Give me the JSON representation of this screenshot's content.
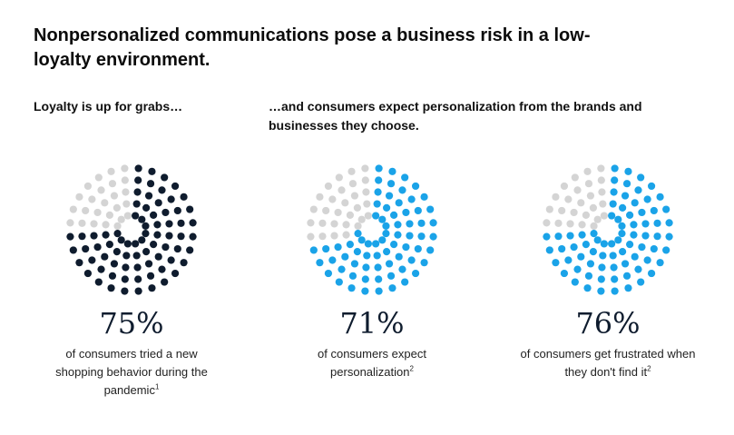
{
  "title": "Nonpersonalized communications pose a business risk in a low-loyalty environment.",
  "subheadings": {
    "left": "Loyalty is up for grabs…",
    "right": "…and consumers expect personalization from the brands and businesses they choose."
  },
  "colors": {
    "inactive": "#d4d4d4",
    "dark": "#0f1c2e",
    "blue": "#1aa3e8"
  },
  "chart_data": [
    {
      "type": "pie",
      "value": 75,
      "max": 100,
      "value_label": "75%",
      "description": "of consumers tried a new shopping behavior during the pandemic",
      "footnote": "1",
      "color_key": "dark"
    },
    {
      "type": "pie",
      "value": 71,
      "max": 100,
      "value_label": "71%",
      "description": "of consumers expect personalization",
      "footnote": "2",
      "color_key": "blue"
    },
    {
      "type": "pie",
      "value": 76,
      "max": 100,
      "value_label": "76%",
      "description": "of consumers get frustrated when they don't find it",
      "footnote": "2",
      "color_key": "blue"
    }
  ]
}
